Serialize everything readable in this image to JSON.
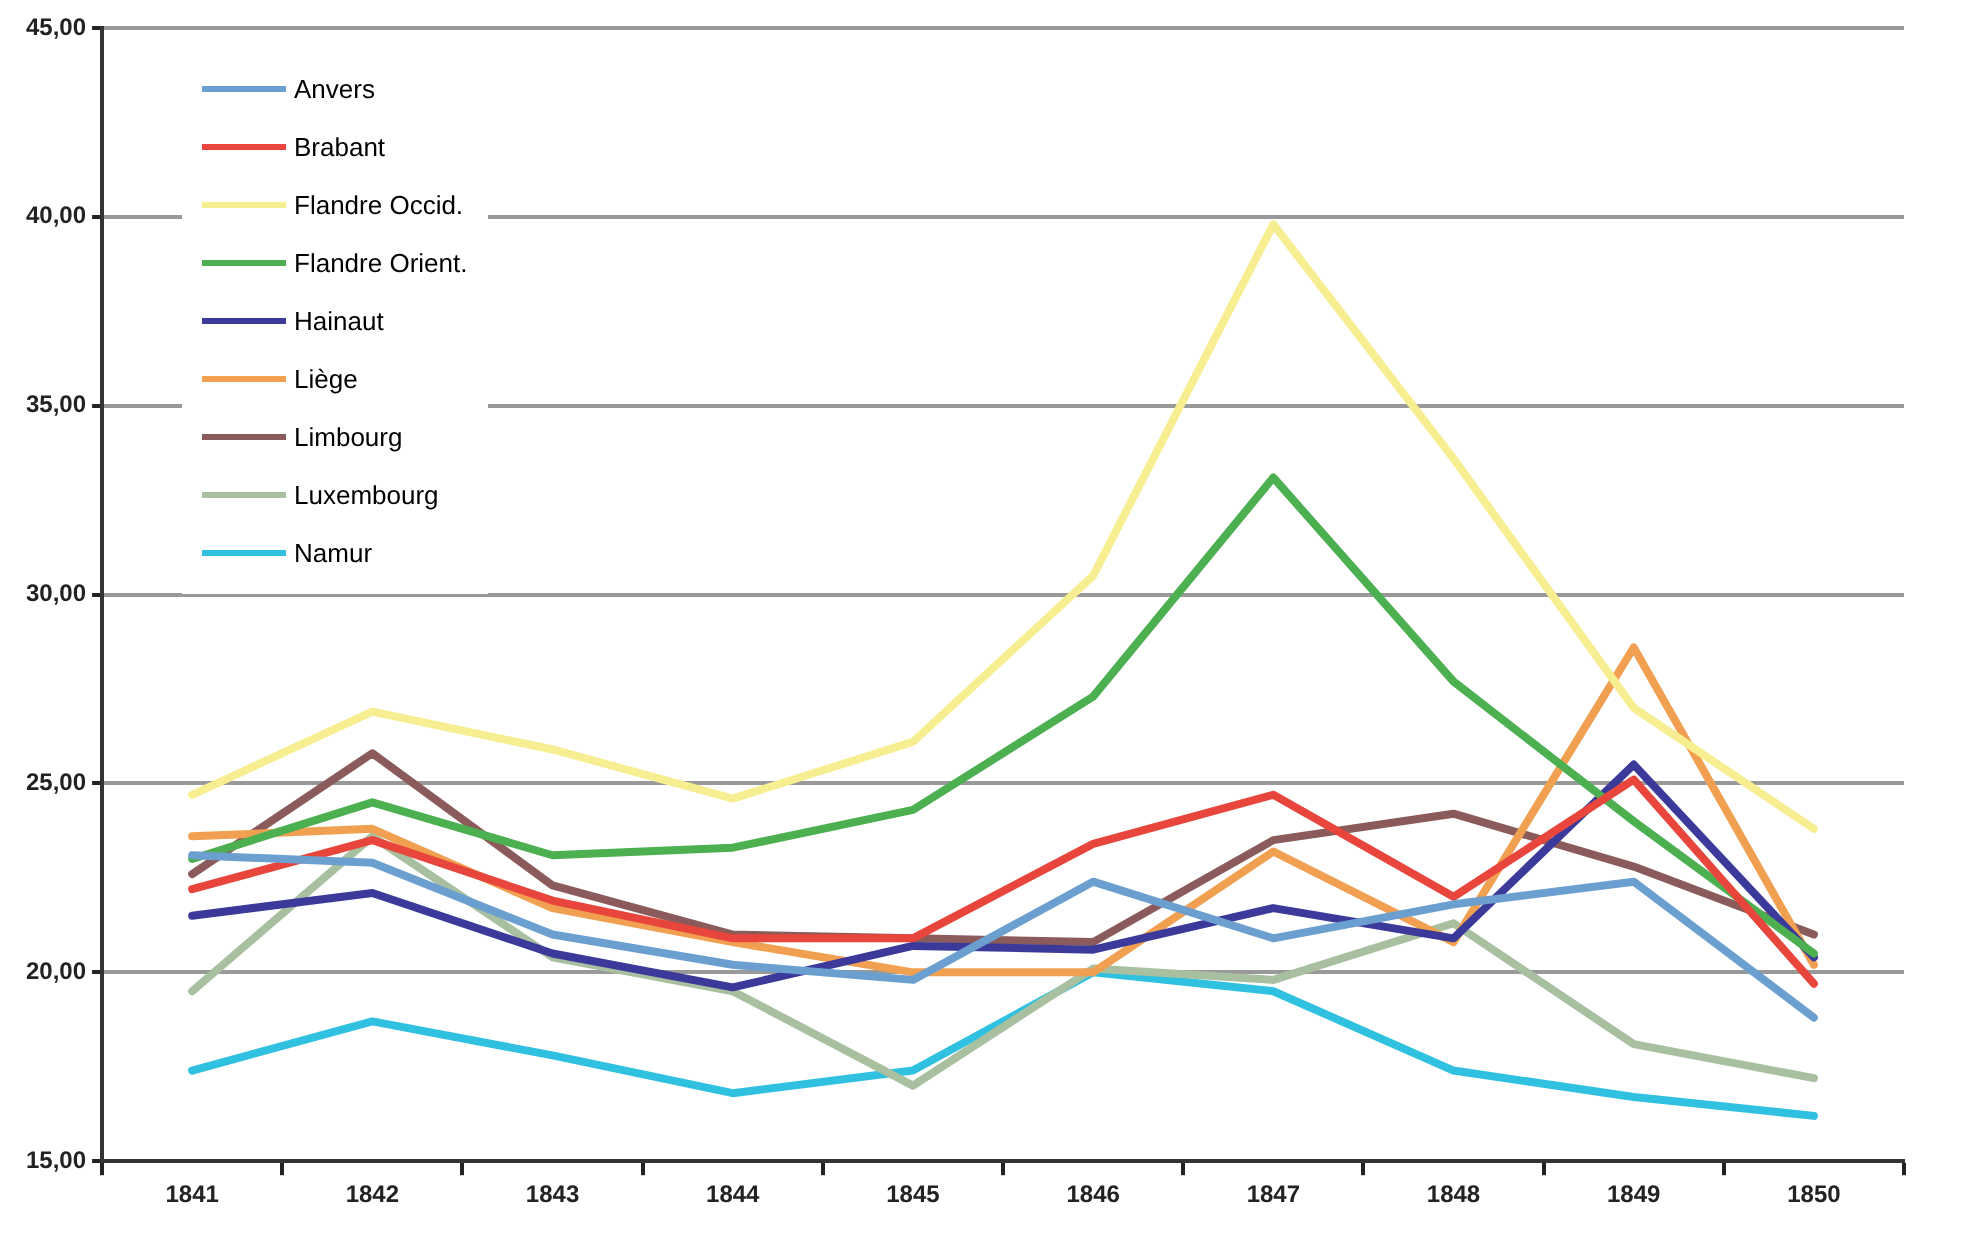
{
  "chart_data": {
    "type": "line",
    "categories": [
      "1841",
      "1842",
      "1843",
      "1844",
      "1845",
      "1846",
      "1847",
      "1848",
      "1849",
      "1850"
    ],
    "ylim": [
      15,
      45
    ],
    "yticks": [
      {
        "value": 15,
        "label": "15,00"
      },
      {
        "value": 20,
        "label": "20,00"
      },
      {
        "value": 25,
        "label": "25,00"
      },
      {
        "value": 30,
        "label": "30,00"
      },
      {
        "value": 35,
        "label": "35,00"
      },
      {
        "value": 40,
        "label": "40,00"
      },
      {
        "value": 45,
        "label": "45,00"
      }
    ],
    "grid": "y",
    "legend": "top left",
    "marker": "none",
    "line_style": "solid",
    "series": [
      {
        "name": "Anvers",
        "color": "#6a9fd0",
        "values": [
          23.1,
          22.9,
          21.0,
          20.2,
          19.8,
          22.4,
          20.9,
          21.8,
          22.4,
          18.8
        ]
      },
      {
        "name": "Brabant",
        "color": "#e8463c",
        "values": [
          22.2,
          23.5,
          21.9,
          20.9,
          20.9,
          23.4,
          24.7,
          22.0,
          25.1,
          19.7
        ]
      },
      {
        "name": "Flandre Occid.",
        "color": "#f6ee90",
        "values": [
          24.7,
          26.9,
          25.9,
          24.6,
          26.1,
          30.5,
          39.8,
          33.6,
          27.0,
          23.8
        ]
      },
      {
        "name": "Flandre Orient.",
        "color": "#4caf50",
        "values": [
          23.0,
          24.5,
          23.1,
          23.3,
          24.3,
          27.3,
          33.1,
          27.7,
          24.0,
          20.5
        ]
      },
      {
        "name": "Hainaut",
        "color": "#3b3a9a",
        "values": [
          21.5,
          22.1,
          20.5,
          19.6,
          20.7,
          20.6,
          21.7,
          20.9,
          25.5,
          20.4
        ]
      },
      {
        "name": "Liège",
        "color": "#f0a050",
        "values": [
          23.6,
          23.8,
          21.7,
          20.8,
          20.0,
          20.0,
          23.2,
          20.8,
          28.6,
          20.2
        ]
      },
      {
        "name": "Limbourg",
        "color": "#8b5a5a",
        "values": [
          22.6,
          25.8,
          22.3,
          21.0,
          20.9,
          20.8,
          23.5,
          24.2,
          22.8,
          21.0
        ]
      },
      {
        "name": "Luxembourg",
        "color": "#a8c0a0",
        "values": [
          19.5,
          23.6,
          20.4,
          19.5,
          17.0,
          20.1,
          19.8,
          21.3,
          18.1,
          17.2
        ]
      },
      {
        "name": "Namur",
        "color": "#30c0e0",
        "values": [
          17.4,
          18.7,
          17.8,
          16.8,
          17.4,
          20.0,
          19.5,
          17.4,
          16.7,
          16.2
        ]
      }
    ]
  }
}
